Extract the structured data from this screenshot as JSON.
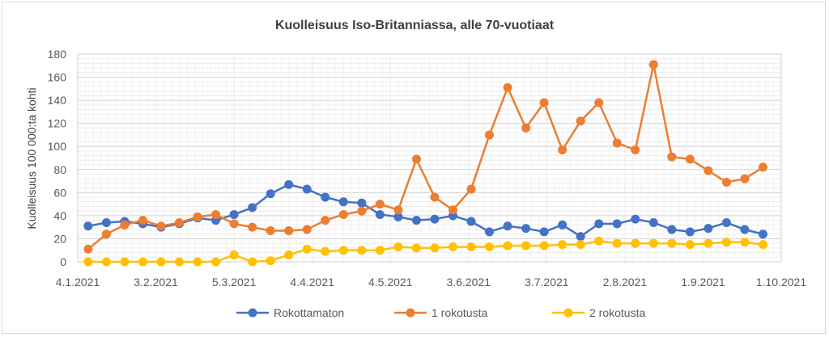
{
  "chart_data": {
    "type": "line",
    "title": "Kuolleisuus Iso-Britanniassa, alle 70-vuotiaat",
    "xlabel": "",
    "ylabel": "Kuolleisuus 100 000:ta kohti",
    "ylim": [
      0,
      180
    ],
    "yticks": [
      "0",
      "20",
      "40",
      "60",
      "80",
      "100",
      "120",
      "140",
      "160",
      "180"
    ],
    "xticks": [
      {
        "label": "4.1.2021",
        "day": 0
      },
      {
        "label": "3.2.2021",
        "day": 30
      },
      {
        "label": "5.3.2021",
        "day": 60
      },
      {
        "label": "4.4.2021",
        "day": 90
      },
      {
        "label": "4.5.2021",
        "day": 120
      },
      {
        "label": "3.6.2021",
        "day": 150
      },
      {
        "label": "3.7.2021",
        "day": 180
      },
      {
        "label": "2.8.2021",
        "day": 210
      },
      {
        "label": "1.9.2021",
        "day": 240
      },
      {
        "label": "1.10.2021",
        "day": 270
      }
    ],
    "x_start_day": 4,
    "x_step_days": 7,
    "grid": true,
    "legend_position": "bottom",
    "series": [
      {
        "name": "Rokottamaton",
        "color": "#4472c4",
        "values": [
          31,
          34,
          35,
          33,
          30,
          33,
          38,
          36,
          41,
          47,
          59,
          67,
          63,
          56,
          52,
          51,
          41,
          39,
          36,
          37,
          40,
          35,
          26,
          31,
          29,
          26,
          32,
          22,
          33,
          33,
          37,
          34,
          28,
          26,
          29,
          34,
          28,
          24
        ]
      },
      {
        "name": "1 rokotusta",
        "color": "#ed7d31",
        "values": [
          11,
          24,
          32,
          36,
          31,
          34,
          39,
          41,
          33,
          30,
          27,
          27,
          28,
          36,
          41,
          44,
          50,
          45,
          89,
          56,
          45,
          63,
          110,
          151,
          116,
          138,
          97,
          122,
          138,
          103,
          97,
          171,
          91,
          89,
          79,
          69,
          72,
          82
        ]
      },
      {
        "name": "2 rokotusta",
        "color": "#ffc000",
        "values": [
          0,
          0,
          0,
          0,
          0,
          0,
          0,
          0,
          6,
          0,
          1,
          6,
          11,
          9,
          10,
          10,
          10,
          13,
          12,
          12,
          13,
          13,
          13,
          14,
          14,
          14,
          15,
          15,
          18,
          16,
          16,
          16,
          16,
          15,
          16,
          17,
          17,
          15
        ]
      }
    ]
  }
}
